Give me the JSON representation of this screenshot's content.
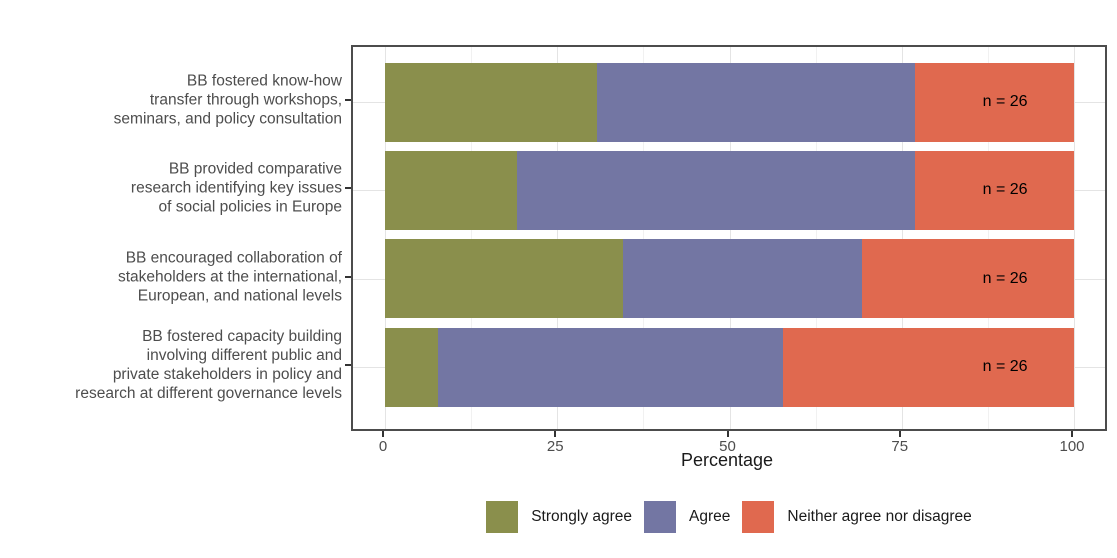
{
  "chart_data": {
    "type": "bar",
    "orientation": "horizontal",
    "stacked": true,
    "title": "",
    "xlabel": "Percentage",
    "ylabel": "",
    "xlim": [
      0,
      100
    ],
    "x_ticks": [
      0,
      25,
      50,
      75,
      100
    ],
    "grid": {
      "on": true,
      "major_every": 25,
      "minor_every": 12.5
    },
    "legend_position": "bottom",
    "annotation_x": 90,
    "categories": [
      {
        "lines": [
          "BB fostered know-how",
          "transfer through workshops,",
          "seminars, and policy consultation"
        ],
        "annotation": "n = 26"
      },
      {
        "lines": [
          "BB provided comparative",
          "research identifying key issues",
          "of social policies in Europe"
        ],
        "annotation": "n = 26"
      },
      {
        "lines": [
          "BB encouraged collaboration of",
          "stakeholders at the international,",
          "European, and national levels"
        ],
        "annotation": "n = 26"
      },
      {
        "lines": [
          "BB fostered capacity building",
          "involving different public and",
          "private stakeholders in policy and",
          "research at different governance levels"
        ],
        "annotation": "n = 26"
      }
    ],
    "series": [
      {
        "name": "Strongly agree",
        "color": "#8A8F4C",
        "values": [
          30.8,
          19.2,
          34.6,
          7.7
        ]
      },
      {
        "name": "Agree",
        "color": "#7376A3",
        "values": [
          46.2,
          57.7,
          34.6,
          50.0
        ]
      },
      {
        "name": "Neither agree nor disagree",
        "color": "#E0694F",
        "values": [
          23.1,
          23.1,
          30.8,
          42.3
        ]
      }
    ],
    "colors": {
      "panel_border": "#4C4C4C",
      "grid_major": "#E4E4E4",
      "grid_minor": "#F1F1F1",
      "axis_text": "#4D4D4D",
      "axis_title": "#1A1A1A",
      "annotation_text": "#000000"
    }
  }
}
